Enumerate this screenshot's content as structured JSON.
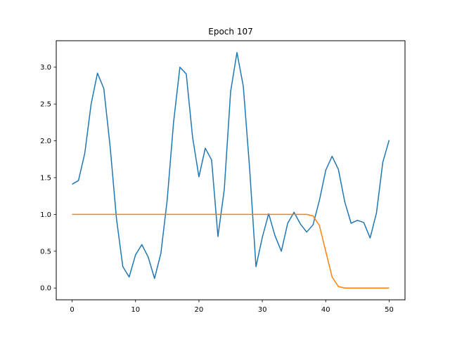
{
  "chart_data": {
    "type": "line",
    "title": "Epoch 107",
    "xlabel": "",
    "ylabel": "",
    "xlim": [
      -2.5,
      52.5
    ],
    "ylim": [
      -0.16,
      3.36
    ],
    "xticks": [
      0,
      10,
      20,
      30,
      40,
      50
    ],
    "yticks": [
      0.0,
      0.5,
      1.0,
      1.5,
      2.0,
      2.5,
      3.0
    ],
    "xtick_labels": [
      "0",
      "10",
      "20",
      "30",
      "40",
      "50"
    ],
    "ytick_labels": [
      "0.0",
      "0.5",
      "1.0",
      "1.5",
      "2.0",
      "2.5",
      "3.0"
    ],
    "grid": false,
    "legend": "none",
    "x": [
      0,
      1,
      2,
      3,
      4,
      5,
      6,
      7,
      8,
      9,
      10,
      11,
      12,
      13,
      14,
      15,
      16,
      17,
      18,
      19,
      20,
      21,
      22,
      23,
      24,
      25,
      26,
      27,
      28,
      29,
      30,
      31,
      32,
      33,
      34,
      35,
      36,
      37,
      38,
      39,
      40,
      41,
      42,
      43,
      44,
      45,
      46,
      47,
      48,
      49,
      50
    ],
    "series": [
      {
        "color": "#1f77b4",
        "values": [
          1.41,
          1.46,
          1.83,
          2.5,
          2.92,
          2.71,
          1.92,
          0.94,
          0.29,
          0.15,
          0.45,
          0.59,
          0.42,
          0.13,
          0.47,
          1.2,
          2.25,
          3.0,
          2.91,
          2.05,
          1.51,
          1.9,
          1.74,
          0.7,
          1.34,
          2.67,
          3.2,
          2.74,
          1.62,
          0.29,
          0.69,
          1.01,
          0.71,
          0.5,
          0.88,
          1.03,
          0.87,
          0.76,
          0.86,
          1.19,
          1.6,
          1.79,
          1.61,
          1.17,
          0.88,
          0.92,
          0.89,
          0.68,
          1.02,
          1.71,
          2.01
        ]
      },
      {
        "color": "#ff7f0e",
        "values": [
          1.0,
          1.0,
          1.0,
          1.0,
          1.0,
          1.0,
          1.0,
          1.0,
          1.0,
          1.0,
          1.0,
          1.0,
          1.0,
          1.0,
          1.0,
          1.0,
          1.0,
          1.0,
          1.0,
          1.0,
          1.0,
          1.0,
          1.0,
          1.0,
          1.0,
          1.0,
          1.0,
          1.0,
          1.0,
          1.0,
          1.0,
          1.0,
          1.0,
          1.0,
          1.0,
          1.0,
          1.0,
          1.0,
          0.98,
          0.85,
          0.5,
          0.15,
          0.02,
          0.0,
          0.0,
          0.0,
          0.0,
          0.0,
          0.0,
          0.0,
          0.0
        ]
      }
    ]
  }
}
